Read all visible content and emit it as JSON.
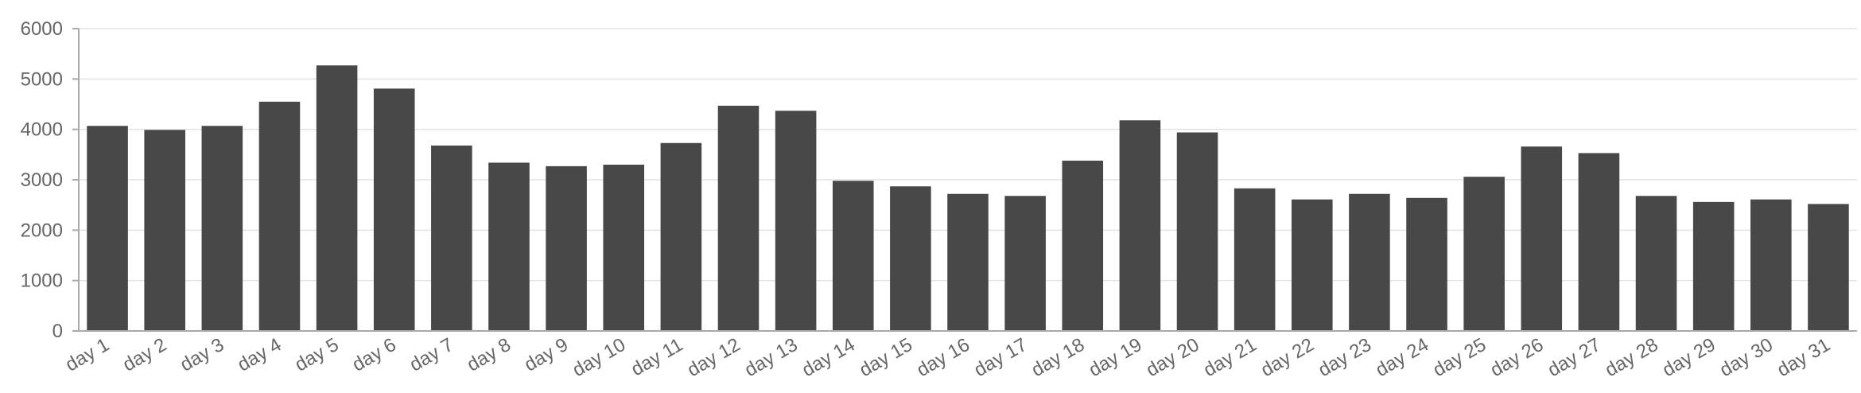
{
  "chart_data": {
    "type": "bar",
    "title": "",
    "xlabel": "",
    "ylabel": "",
    "ylim": [
      0,
      6000
    ],
    "yticks": [
      "0",
      "1000",
      "2000",
      "3000",
      "4000",
      "5000",
      "6000"
    ],
    "grid": true,
    "legend": "none",
    "bar_color": "#484848",
    "categories": [
      "day 1",
      "day 2",
      "day 3",
      "day 4",
      "day 5",
      "day 6",
      "day 7",
      "day 8",
      "day 9",
      "day 10",
      "day 11",
      "day 12",
      "day 13",
      "day 14",
      "day 15",
      "day 16",
      "day 17",
      "day 18",
      "day 19",
      "day 20",
      "day 21",
      "day 22",
      "day 23",
      "day 24",
      "day 25",
      "day 26",
      "day 27",
      "day 28",
      "day 29",
      "day 30",
      "day 31"
    ],
    "values": [
      4070,
      3990,
      4070,
      4550,
      5270,
      4810,
      3680,
      3340,
      3270,
      3300,
      3730,
      4470,
      4370,
      2980,
      2870,
      2720,
      2680,
      3380,
      4180,
      3940,
      2830,
      2610,
      2720,
      2640,
      3060,
      3660,
      3530,
      2680,
      2560,
      2610,
      2520
    ]
  }
}
